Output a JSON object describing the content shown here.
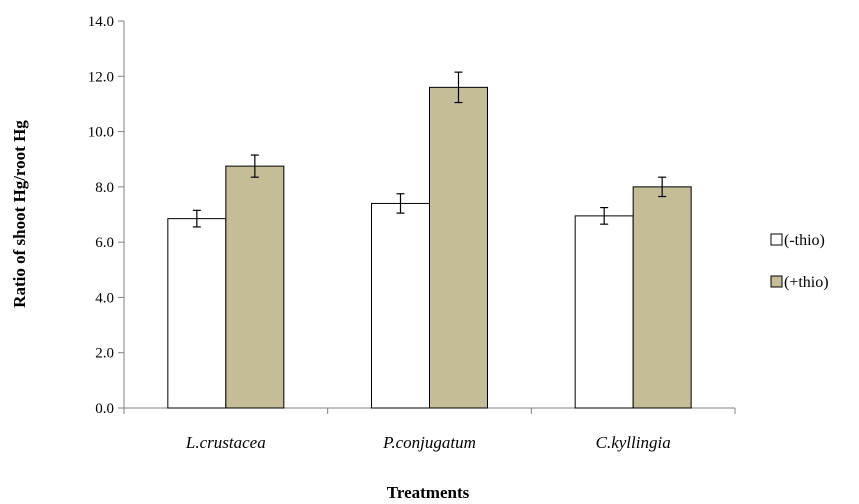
{
  "chart_data": {
    "type": "bar",
    "categories": [
      "L.crustacea",
      "P.conjugatum",
      "C.kyllingia"
    ],
    "series": [
      {
        "name": "(-thio)",
        "values": [
          6.85,
          7.4,
          6.95
        ],
        "errors": [
          0.3,
          0.35,
          0.3
        ],
        "color": "#ffffff"
      },
      {
        "name": "(+thio)",
        "values": [
          8.75,
          11.6,
          8.0
        ],
        "errors": [
          0.4,
          0.55,
          0.35
        ],
        "color": "#c4bd97"
      }
    ],
    "xlabel": "Treatments",
    "ylabel": "Ratio of shoot Hg/root Hg",
    "ylim": [
      0,
      14
    ],
    "yticks": [
      "0.0",
      "2.0",
      "4.0",
      "6.0",
      "8.0",
      "10.0",
      "12.0",
      "14.0"
    ],
    "grid": false,
    "legend_position": "right"
  }
}
